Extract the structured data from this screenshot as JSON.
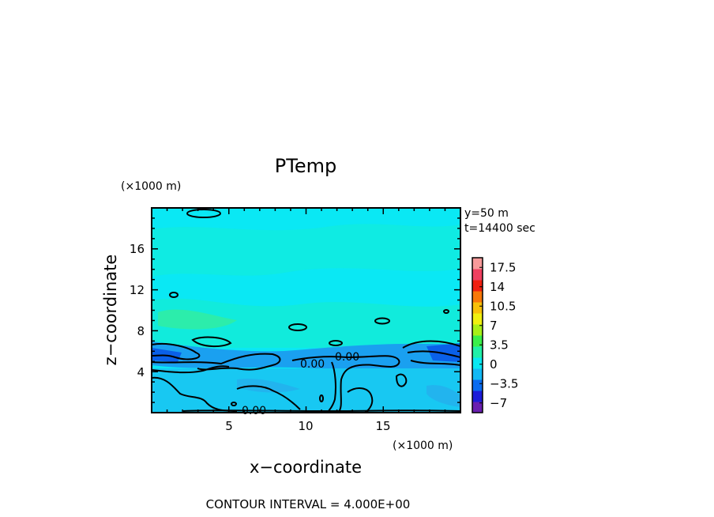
{
  "chart_data": {
    "type": "heatmap",
    "title": "PTemp",
    "xlabel": "x−coordinate",
    "ylabel": "z−coordinate",
    "x_unit": "(×1000 m)",
    "y_unit": "(×1000 m)",
    "xlim": [
      0,
      20
    ],
    "ylim": [
      0,
      20
    ],
    "x_ticks": [
      "5",
      "10",
      "15"
    ],
    "y_ticks": [
      "4",
      "8",
      "12",
      "16"
    ],
    "annotations": [
      "y=50 m",
      "t=14400 sec"
    ],
    "contour_interval_label": "CONTOUR INTERVAL = 4.000E+00",
    "contour_labels": [
      "0.00",
      "0.00",
      "0.00"
    ],
    "colorbar": {
      "range": [
        -8.75,
        19.25
      ],
      "tick_labels": [
        "17.5",
        "14",
        "10.5",
        "7",
        "3.5",
        "0",
        "−3.5",
        "−7"
      ],
      "tick_values": [
        17.5,
        14,
        10.5,
        7,
        3.5,
        0,
        -3.5,
        -7
      ],
      "colors": [
        "#6a1fb0",
        "#1c1cd8",
        "#0a6cf0",
        "#12b8f4",
        "#08e8f2",
        "#20f0a8",
        "#3af04a",
        "#a8f018",
        "#f0f010",
        "#f8c008",
        "#f87808",
        "#f02010",
        "#f04060",
        "#f89a9a"
      ]
    },
    "field_bands": [
      {
        "z_range": [
          0,
          4.5
        ],
        "value": -1.5,
        "color": "#18c8f2"
      },
      {
        "z_range": [
          4.5,
          6
        ],
        "value": -3,
        "color": "#1aa0f0"
      },
      {
        "z_range": [
          6,
          9.5
        ],
        "value": 1.5,
        "color": "#14e6ea"
      },
      {
        "z_range": [
          9.5,
          20
        ],
        "value": 0.5,
        "color": "#0ae8f4"
      }
    ]
  }
}
